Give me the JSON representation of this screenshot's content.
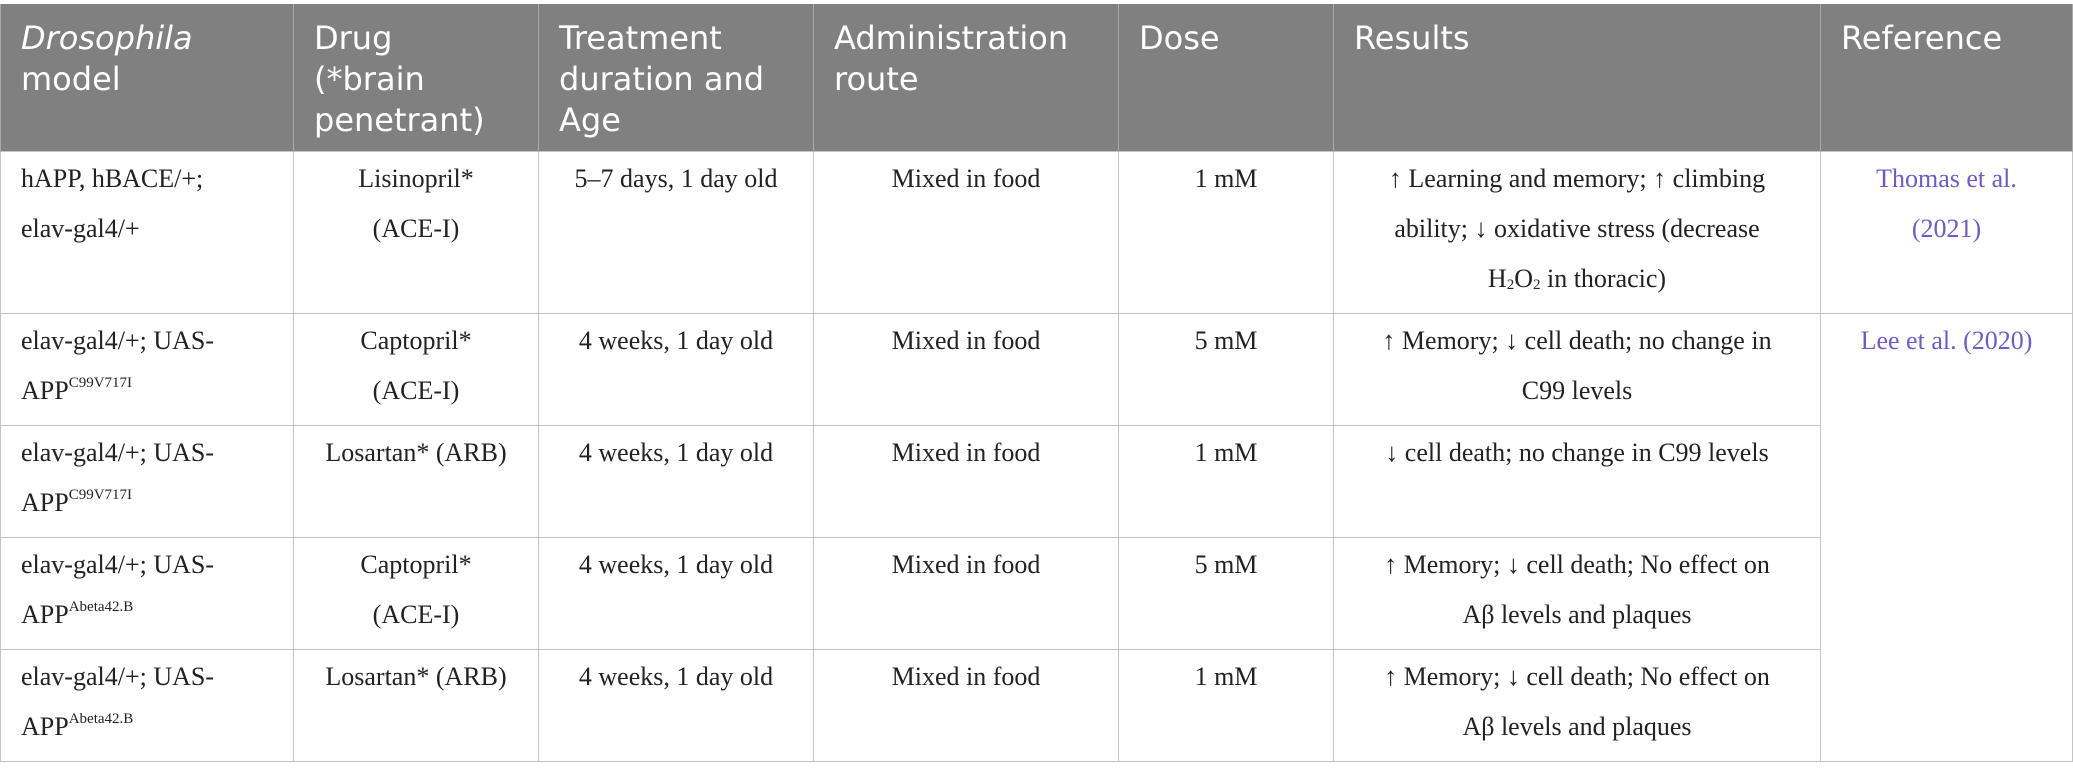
{
  "headers": {
    "model_em": "Drosophila",
    "model_rest": "model",
    "drug_l1": "Drug",
    "drug_l2": "(*brain",
    "drug_l3": "penetrant)",
    "duration_l1": "Treatment",
    "duration_l2": "duration and",
    "duration_l3": "Age",
    "route_l1": "Administration",
    "route_l2": "route",
    "dose": "Dose",
    "results": "Results",
    "reference": "Reference"
  },
  "rows": [
    {
      "model_l1": "hAPP, hBACE/+;",
      "model_l2": "elav-gal4/+",
      "drug_l1": "Lisinopril*",
      "drug_l2": "(ACE-I)",
      "duration": "5–7 days, 1 day old",
      "route": "Mixed in food",
      "dose": "1 mM",
      "results_l1": "↑ Learning and memory; ↑ climbing",
      "results_l2": "ability; ↓ oxidative stress (decrease",
      "results_l3_pre": "H",
      "results_l3_sub1": "2",
      "results_l3_mid": "O",
      "results_l3_sub2": "2",
      "results_l3_post": " in thoracic)",
      "ref_l1": "Thomas et al.",
      "ref_l2": "(2021)"
    },
    {
      "model_l1": "elav-gal4/+; UAS-",
      "model_l2": "APP",
      "model_sup": "C99V717I",
      "drug_l1": "Captopril*",
      "drug_l2": "(ACE-I)",
      "duration": "4 weeks, 1 day old",
      "route": "Mixed in food",
      "dose": "5 mM",
      "results_l1": "↑ Memory; ↓ cell death; no change in",
      "results_l2": "C99 levels",
      "ref_l1": "Lee et al. (2020)"
    },
    {
      "model_l1": "elav-gal4/+; UAS-",
      "model_l2": "APP",
      "model_sup": "C99V717I",
      "drug_l1": "Losartan* (ARB)",
      "duration": "4 weeks, 1 day old",
      "route": "Mixed in food",
      "dose": "1 mM",
      "results_l1": "↓ cell death; no change in C99 levels"
    },
    {
      "model_l1": "elav-gal4/+; UAS-",
      "model_l2": "APP",
      "model_sup": "Abeta42.B",
      "drug_l1": "Captopril*",
      "drug_l2": "(ACE-I)",
      "duration": "4 weeks, 1 day old",
      "route": "Mixed in food",
      "dose": "5 mM",
      "results_l1": "↑ Memory; ↓ cell death; No effect on",
      "results_l2": "Aβ levels and plaques"
    },
    {
      "model_l1": "elav-gal4/+; UAS-",
      "model_l2": "APP",
      "model_sup": "Abeta42.B",
      "drug_l1": "Losartan* (ARB)",
      "duration": "4 weeks, 1 day old",
      "route": "Mixed in food",
      "dose": "1 mM",
      "results_l1": "↑ Memory; ↓ cell death; No effect on",
      "results_l2": "Aβ levels and plaques"
    }
  ]
}
